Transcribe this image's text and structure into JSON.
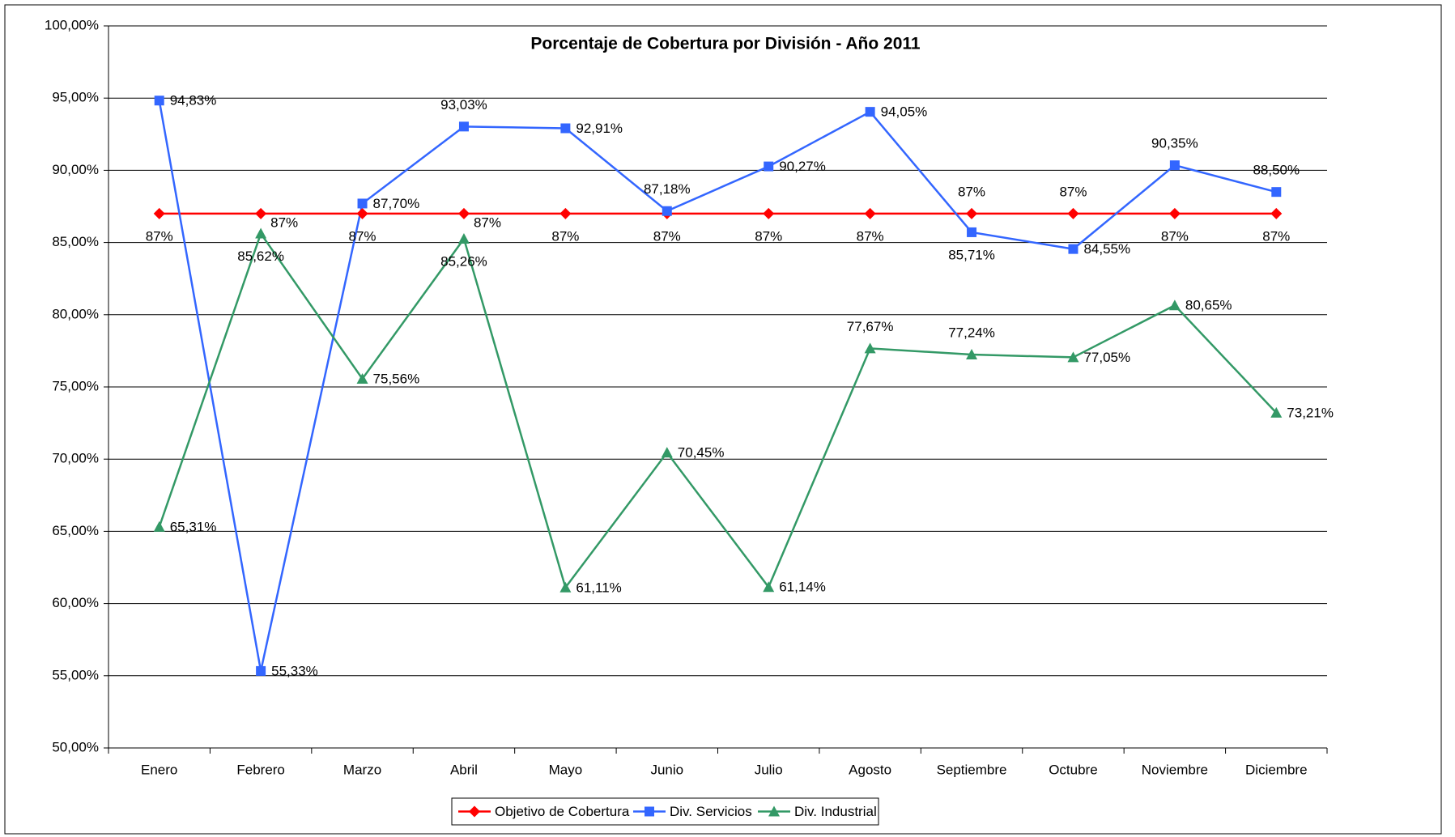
{
  "chart_data": {
    "type": "line",
    "title": "Porcentaje de Cobertura por División - Año 2011",
    "categories": [
      "Enero",
      "Febrero",
      "Marzo",
      "Abril",
      "Mayo",
      "Junio",
      "Julio",
      "Agosto",
      "Septiembre",
      "Octubre",
      "Noviembre",
      "Diciembre"
    ],
    "series": [
      {
        "name": "Objetivo de Cobertura",
        "color": "#ff0000",
        "marker": "diamond",
        "values": [
          87,
          87,
          87,
          87,
          87,
          87,
          87,
          87,
          87,
          87,
          87,
          87
        ],
        "value_labels": [
          "87%",
          "87%",
          "87%",
          "87%",
          "87%",
          "87%",
          "87%",
          "87%",
          "87%",
          "87%",
          "87%",
          "87%"
        ]
      },
      {
        "name": "Div. Servicios",
        "color": "#3366ff",
        "marker": "square",
        "values": [
          94.83,
          55.33,
          87.7,
          93.03,
          92.91,
          87.18,
          90.27,
          94.05,
          85.71,
          84.55,
          90.35,
          88.5
        ],
        "value_labels": [
          "94,83%",
          "55,33%",
          "87,70%",
          "93,03%",
          "92,91%",
          "87,18%",
          "90,27%",
          "94,05%",
          "85,71%",
          "84,55%",
          "90,35%",
          "88,50%"
        ]
      },
      {
        "name": "Div. Industrial",
        "color": "#339966",
        "marker": "triangle",
        "values": [
          65.31,
          85.62,
          75.56,
          85.26,
          61.11,
          70.45,
          61.14,
          77.67,
          77.24,
          77.05,
          80.65,
          73.21
        ],
        "value_labels": [
          "65,31%",
          "85,62%",
          "75,56%",
          "85,26%",
          "61,11%",
          "70,45%",
          "61,14%",
          "77,67%",
          "77,24%",
          "77,05%",
          "80,65%",
          "73,21%"
        ]
      }
    ],
    "ylim": [
      50,
      100
    ],
    "yticks": [
      {
        "value": 50,
        "label": "50,00%"
      },
      {
        "value": 55,
        "label": "55,00%"
      },
      {
        "value": 60,
        "label": "60,00%"
      },
      {
        "value": 65,
        "label": "65,00%"
      },
      {
        "value": 70,
        "label": "70,00%"
      },
      {
        "value": 75,
        "label": "75,00%"
      },
      {
        "value": 80,
        "label": "80,00%"
      },
      {
        "value": 85,
        "label": "85,00%"
      },
      {
        "value": 90,
        "label": "90,00%"
      },
      {
        "value": 95,
        "label": "95,00%"
      },
      {
        "value": 100,
        "label": "100,00%"
      }
    ],
    "grid": true,
    "legend": "bottom"
  }
}
